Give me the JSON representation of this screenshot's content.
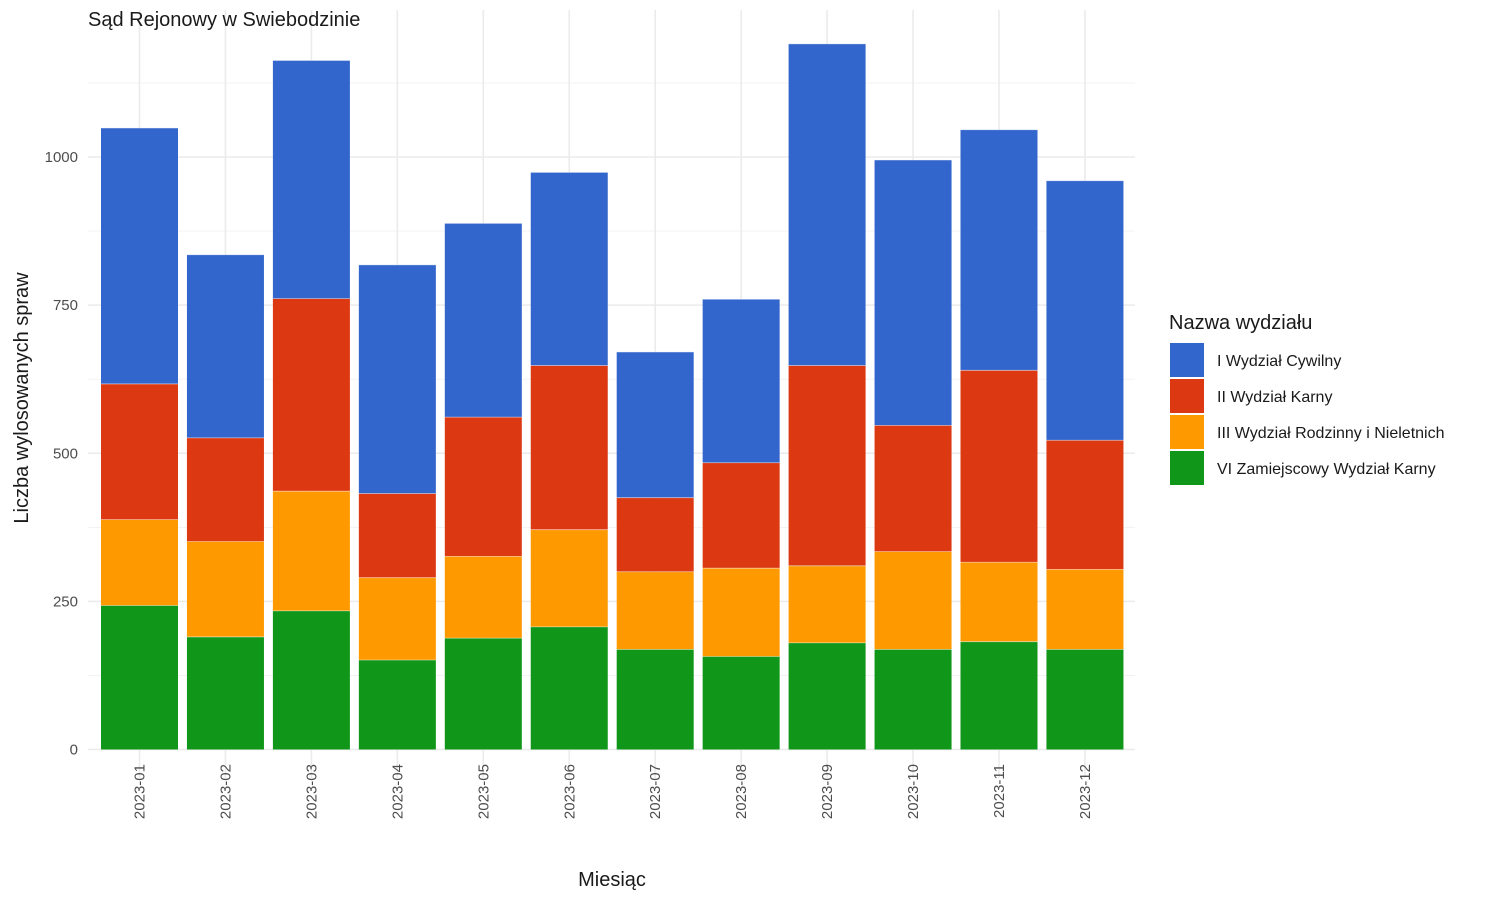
{
  "chart_data": {
    "type": "bar",
    "stacked": true,
    "title": "Sąd Rejonowy w Swiebodzinie",
    "xlabel": "Miesiąc",
    "ylabel": "Liczba wylosowanych spraw",
    "ylim": [
      0,
      1200
    ],
    "y_ticks": [
      0,
      250,
      500,
      750,
      1000
    ],
    "grid": true,
    "legend": {
      "title": "Nazwa wydziału",
      "position": "right"
    },
    "categories": [
      "2023-01",
      "2023-02",
      "2023-03",
      "2023-04",
      "2023-05",
      "2023-06",
      "2023-07",
      "2023-08",
      "2023-09",
      "2023-10",
      "2023-11",
      "2023-12"
    ],
    "series": [
      {
        "name": "VI Zamiejscowy Wydział Karny",
        "color": "#109618",
        "values": [
          243,
          190,
          234,
          151,
          188,
          207,
          169,
          157,
          180,
          169,
          182,
          169
        ]
      },
      {
        "name": "III Wydział Rodzinny i Nieletnich",
        "color": "#ff9900",
        "values": [
          145,
          161,
          202,
          139,
          138,
          164,
          131,
          149,
          130,
          165,
          134,
          135
        ]
      },
      {
        "name": "II Wydział Karny",
        "color": "#dc3912",
        "values": [
          229,
          175,
          325,
          142,
          235,
          277,
          125,
          178,
          338,
          213,
          324,
          218
        ]
      },
      {
        "name": "I Wydział Cywilny",
        "color": "#3366cc",
        "values": [
          432,
          309,
          402,
          386,
          327,
          326,
          246,
          276,
          543,
          448,
          406,
          438
        ]
      }
    ],
    "legend_order": [
      "I Wydział Cywilny",
      "II Wydział Karny",
      "III Wydział Rodzinny i Nieletnich",
      "VI Zamiejscowy Wydział Karny"
    ]
  }
}
